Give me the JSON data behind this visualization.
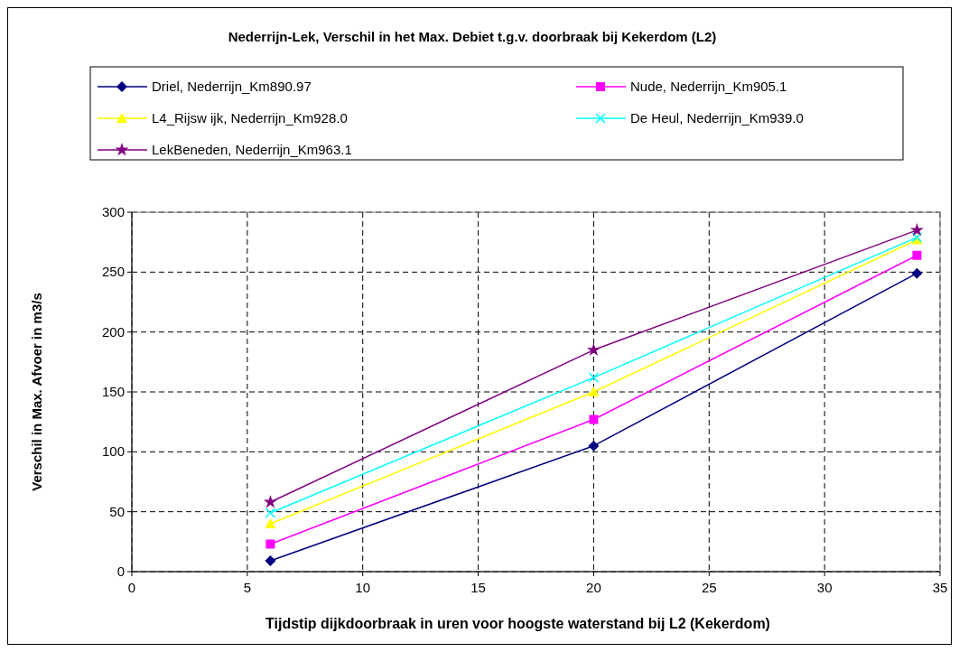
{
  "chart_data": {
    "type": "line",
    "title": "Nederrijn-Lek, Verschil in het Max. Debiet t.g.v. doorbraak bij Kekerdom (L2)",
    "xlabel": "Tijdstip dijkdoorbraak in uren voor hoogste waterstand bij L2 (Kekerdom)",
    "ylabel": "Verschil in Max. Afvoer in m3/s",
    "x": [
      6,
      20,
      34
    ],
    "series": [
      {
        "name": "Driel, Nederrijn_Km890.97",
        "color": "#000080",
        "marker": "diamond",
        "values": [
          9,
          105,
          249
        ]
      },
      {
        "name": "Nude, Nederrijn_Km905.1",
        "color": "#ff00ff",
        "marker": "square",
        "values": [
          23,
          127,
          264
        ]
      },
      {
        "name": "L4_Rijsw ijk, Nederrijn_Km928.0",
        "color": "#ffff00",
        "marker": "triangle",
        "values": [
          40,
          150,
          277
        ]
      },
      {
        "name": "De Heul, Nederrijn_Km939.0",
        "color": "#00ffff",
        "marker": "cross",
        "values": [
          49,
          162,
          279
        ]
      },
      {
        "name": "LekBeneden, Nederrijn_Km963.1",
        "color": "#800080",
        "marker": "star",
        "values": [
          58,
          185,
          285
        ]
      }
    ],
    "xlim": [
      0,
      35
    ],
    "xticks": [
      0,
      5,
      10,
      15,
      20,
      25,
      30,
      35
    ],
    "ylim": [
      0,
      300
    ],
    "yticks": [
      0,
      50,
      100,
      150,
      200,
      250,
      300
    ],
    "grid": true,
    "legend": "top",
    "line_style": "solid"
  }
}
